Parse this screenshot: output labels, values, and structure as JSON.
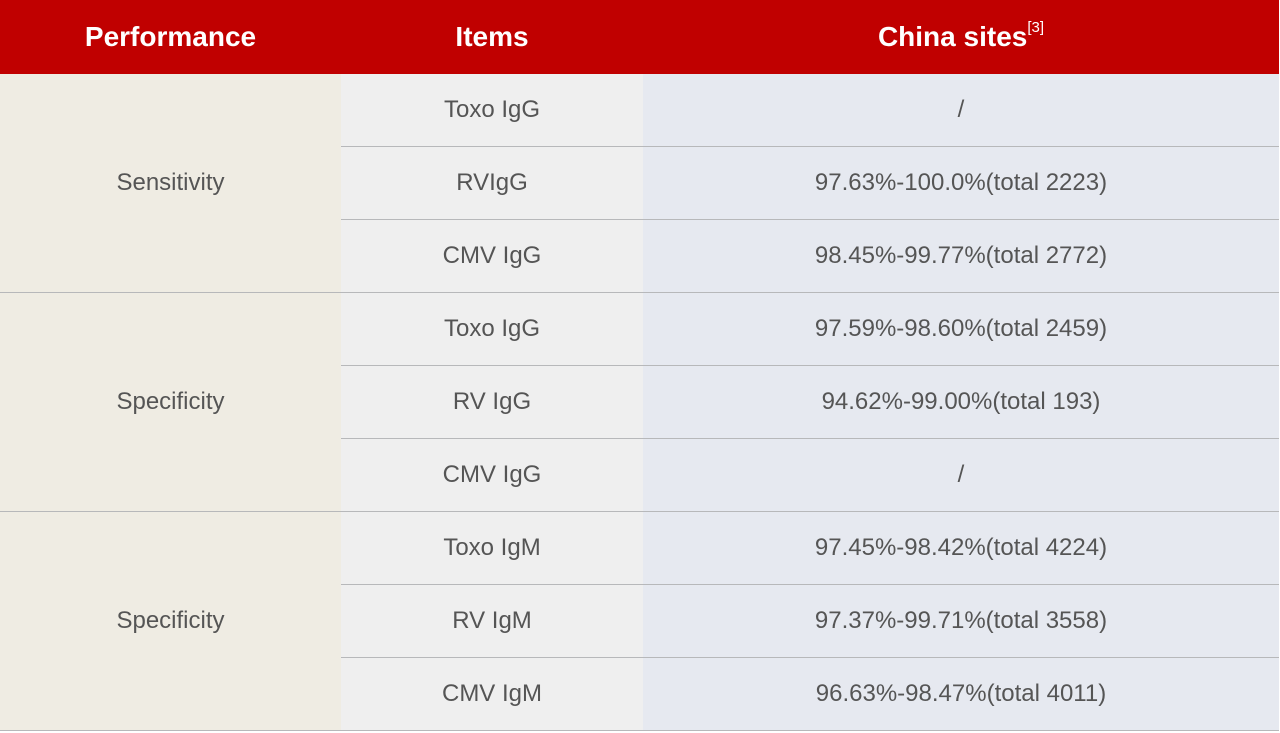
{
  "header": {
    "performance": "Performance",
    "items": "Items",
    "sites": "China sites",
    "sites_ref": "[3]"
  },
  "colors": {
    "header_bg": "#c00000",
    "performance_bg": "#efece3",
    "items_bg": "#efefef",
    "values_bg": "#e6e9f0"
  },
  "groups": [
    {
      "performance": "Sensitivity",
      "rows": [
        {
          "item": "Toxo IgG",
          "value": "/"
        },
        {
          "item": "RVIgG",
          "value": "97.63%-100.0%(total 2223)"
        },
        {
          "item": "CMV IgG",
          "value": "98.45%-99.77%(total 2772)"
        }
      ]
    },
    {
      "performance": "Specificity",
      "rows": [
        {
          "item": "Toxo IgG",
          "value": "97.59%-98.60%(total 2459)"
        },
        {
          "item": "RV IgG",
          "value": "94.62%-99.00%(total 193)"
        },
        {
          "item": "CMV IgG",
          "value": "/"
        }
      ]
    },
    {
      "performance": "Specificity",
      "rows": [
        {
          "item": "Toxo IgM",
          "value": "97.45%-98.42%(total 4224)"
        },
        {
          "item": "RV IgM",
          "value": "97.37%-99.71%(total 3558)"
        },
        {
          "item": "CMV IgM",
          "value": "96.63%-98.47%(total 4011)"
        }
      ]
    }
  ]
}
